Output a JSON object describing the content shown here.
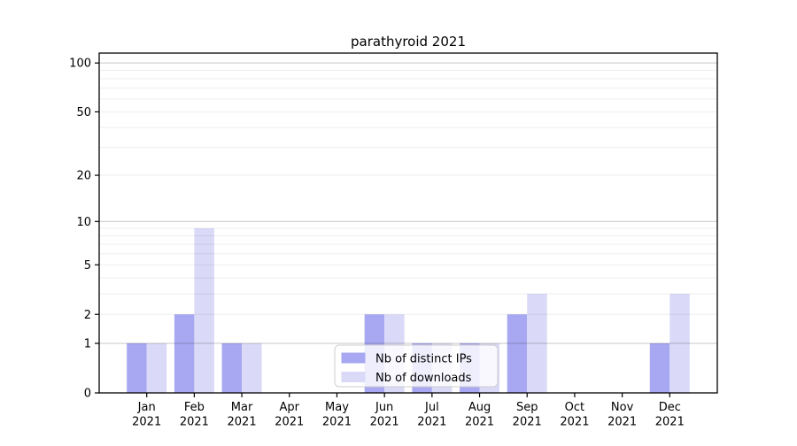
{
  "title": "parathyroid 2021",
  "colors": {
    "distinct_ips_bar": "#a8a8f2",
    "downloads_bar": "#dadaf8",
    "grid_major": "rgba(0,0,0,0.22)",
    "grid_minor": "rgba(0,0,0,0.07)",
    "axis_spine": "#000000",
    "legend_background": "rgba(255,255,255,0.8)",
    "legend_border": "#cccccc",
    "text": "#000000"
  },
  "chart_data": {
    "type": "bar",
    "title": "parathyroid 2021",
    "categories": [
      "Jan\n2021",
      "Feb\n2021",
      "Mar\n2021",
      "Apr\n2021",
      "May\n2021",
      "Jun\n2021",
      "Jul\n2021",
      "Aug\n2021",
      "Sep\n2021",
      "Oct\n2021",
      "Nov\n2021",
      "Dec\n2021"
    ],
    "series": [
      {
        "name": "Nb of distinct IPs",
        "values": [
          1,
          2,
          1,
          0,
          0,
          2,
          1,
          1,
          2,
          0,
          0,
          1
        ],
        "color": "#a8a8f2"
      },
      {
        "name": "Nb of downloads",
        "values": [
          1,
          9,
          1,
          0,
          0,
          2,
          1,
          1,
          3,
          0,
          0,
          3
        ],
        "color": "#dadaf8"
      }
    ],
    "xlabel": "",
    "ylabel": "",
    "y_axis": {
      "scale": "log10(1+value)",
      "ticks": [
        0,
        1,
        2,
        5,
        10,
        20,
        50,
        100
      ],
      "ylim": [
        0,
        115
      ],
      "grid_major_values": [
        1,
        10,
        100
      ],
      "grid_minor_values": [
        2,
        3,
        4,
        5,
        6,
        7,
        8,
        9,
        20,
        30,
        40,
        50,
        60,
        70,
        80,
        90
      ]
    },
    "grid": "horizontal",
    "legend": {
      "position": "inside-bottom-center",
      "entries": [
        "Nb of distinct IPs",
        "Nb of downloads"
      ]
    }
  }
}
